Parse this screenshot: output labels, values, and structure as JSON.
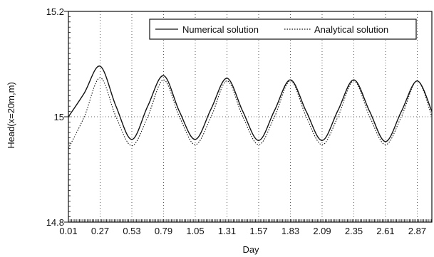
{
  "chart_data": {
    "type": "line",
    "title": "",
    "xlabel": "Day",
    "ylabel": "Head(x=20m,m)",
    "xlim": [
      0.01,
      2.99
    ],
    "ylim": [
      14.8,
      15.2
    ],
    "x_ticks": [
      "0.01",
      "0.27",
      "0.53",
      "0.79",
      "1.05",
      "1.31",
      "1.57",
      "1.83",
      "2.09",
      "2.35",
      "2.61",
      "2.87"
    ],
    "y_ticks": [
      "14.8",
      "15",
      "15.2"
    ],
    "grid": "vertical dotted lines at x ticks; horizontal dotted reference line at 15",
    "legend": "top-right",
    "series": [
      {
        "name": "Numerical solution",
        "style": "solid",
        "color": "#111111",
        "x": [
          0.01,
          0.14,
          0.27,
          0.4,
          0.53,
          0.66,
          0.79,
          0.92,
          1.05,
          1.18,
          1.31,
          1.44,
          1.57,
          1.7,
          1.83,
          1.96,
          2.09,
          2.22,
          2.35,
          2.48,
          2.61,
          2.74,
          2.87,
          2.99
        ],
        "y": [
          15.0,
          15.045,
          15.096,
          15.02,
          14.957,
          15.02,
          15.078,
          15.01,
          14.957,
          15.015,
          15.073,
          15.01,
          14.955,
          15.012,
          15.07,
          15.01,
          14.955,
          15.012,
          15.07,
          15.01,
          14.953,
          15.01,
          15.068,
          15.01
        ]
      },
      {
        "name": "Analytical solution",
        "style": "dotted",
        "color": "#111111",
        "x": [
          0.01,
          0.14,
          0.27,
          0.4,
          0.53,
          0.66,
          0.79,
          0.92,
          1.05,
          1.18,
          1.31,
          1.44,
          1.57,
          1.7,
          1.83,
          1.96,
          2.09,
          2.22,
          2.35,
          2.48,
          2.61,
          2.74,
          2.87,
          2.99
        ],
        "y": [
          14.94,
          15.0,
          15.074,
          15.0,
          14.945,
          15.0,
          15.07,
          15.0,
          14.947,
          15.0,
          15.068,
          15.0,
          14.947,
          15.0,
          15.068,
          15.0,
          14.947,
          15.0,
          15.068,
          15.0,
          14.947,
          15.0,
          15.068,
          15.0
        ]
      }
    ]
  }
}
